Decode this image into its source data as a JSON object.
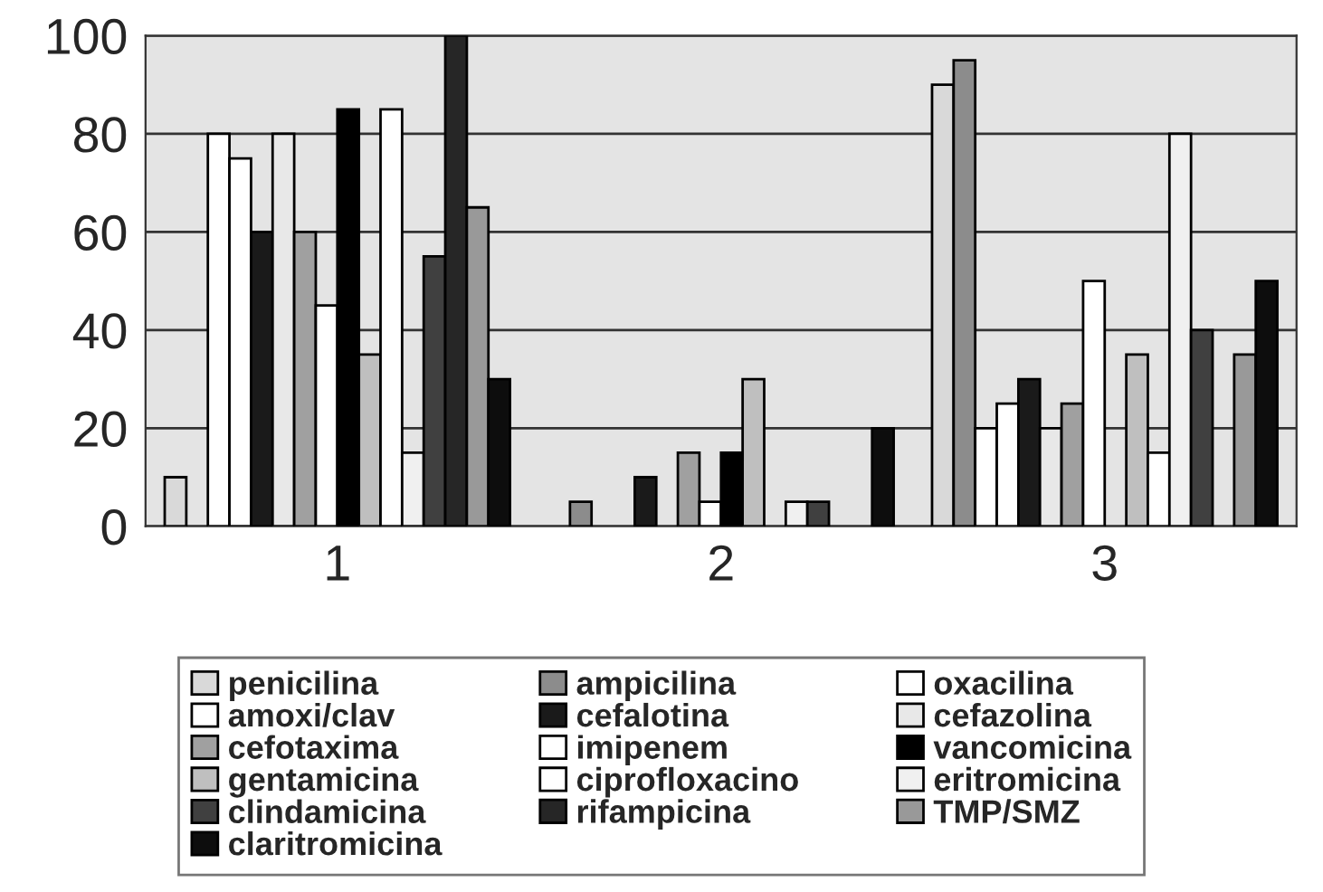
{
  "chart_data": {
    "type": "bar",
    "categories": [
      "1",
      "2",
      "3"
    ],
    "series": [
      {
        "name": "penicilina",
        "color": "#d9d9d9",
        "values": [
          10,
          0,
          90
        ]
      },
      {
        "name": "ampicilina",
        "color": "#8c8c8c",
        "values": [
          0,
          5,
          95
        ]
      },
      {
        "name": "oxacilina",
        "color": "#ffffff",
        "values": [
          80,
          0,
          20
        ]
      },
      {
        "name": "amoxi/clav",
        "color": "#ffffff",
        "values": [
          75,
          0,
          25
        ]
      },
      {
        "name": "cefalotina",
        "color": "#1a1a1a",
        "values": [
          60,
          10,
          30
        ]
      },
      {
        "name": "cefazolina",
        "color": "#e8e8e8",
        "values": [
          80,
          0,
          20
        ]
      },
      {
        "name": "cefotaxima",
        "color": "#a0a0a0",
        "values": [
          60,
          15,
          25
        ]
      },
      {
        "name": "imipenem",
        "color": "#ffffff",
        "values": [
          45,
          5,
          50
        ]
      },
      {
        "name": "vancomicina",
        "color": "#000000",
        "values": [
          85,
          15,
          0
        ]
      },
      {
        "name": "gentamicina",
        "color": "#bfbfbf",
        "values": [
          35,
          30,
          35
        ]
      },
      {
        "name": "ciprofloxacino",
        "color": "#ffffff",
        "values": [
          85,
          0,
          15
        ]
      },
      {
        "name": "eritromicina",
        "color": "#f0f0f0",
        "values": [
          15,
          5,
          80
        ]
      },
      {
        "name": "clindamicina",
        "color": "#404040",
        "values": [
          55,
          5,
          40
        ]
      },
      {
        "name": "rifampicina",
        "color": "#262626",
        "values": [
          100,
          0,
          0
        ]
      },
      {
        "name": "TMP/SMZ",
        "color": "#999999",
        "values": [
          65,
          0,
          35
        ]
      },
      {
        "name": "claritromicina",
        "color": "#0d0d0d",
        "values": [
          30,
          20,
          50
        ]
      }
    ],
    "ylim": [
      0,
      100
    ],
    "yticks": [
      0,
      20,
      40,
      60,
      80,
      100
    ],
    "grid": "y",
    "legend": "bottom"
  }
}
